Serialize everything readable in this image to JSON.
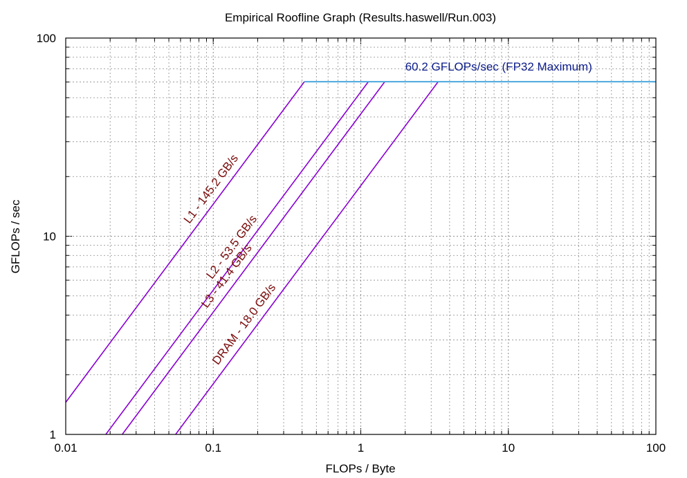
{
  "chart_data": {
    "type": "line",
    "title": "Empirical Roofline Graph (Results.haswell/Run.003)",
    "xlabel": "FLOPs / Byte",
    "ylabel": "GFLOPs / sec",
    "xscale": "log",
    "yscale": "log",
    "xlim": [
      0.01,
      100
    ],
    "ylim": [
      1,
      100
    ],
    "grid": true,
    "xticks": [
      "0.01",
      "0.1",
      "1",
      "10",
      "100"
    ],
    "yticks": [
      "1",
      "10",
      "100"
    ],
    "peak": {
      "label": "60.2 GFLOPs/sec (FP32 Maximum)",
      "gflops": 60.2,
      "color": "#4aa8e0"
    },
    "series": [
      {
        "label": "L1 - 145.2 GB/s",
        "bandwidth": 145.2
      },
      {
        "label": "L2 - 53.5 GB/s",
        "bandwidth": 53.5
      },
      {
        "label": "L3 - 41.4 GB/s",
        "bandwidth": 41.4
      },
      {
        "label": "DRAM - 18.0 GB/s",
        "bandwidth": 18.0
      }
    ],
    "line_color": "#8a00d4",
    "label_color": "#7a0a0a"
  }
}
